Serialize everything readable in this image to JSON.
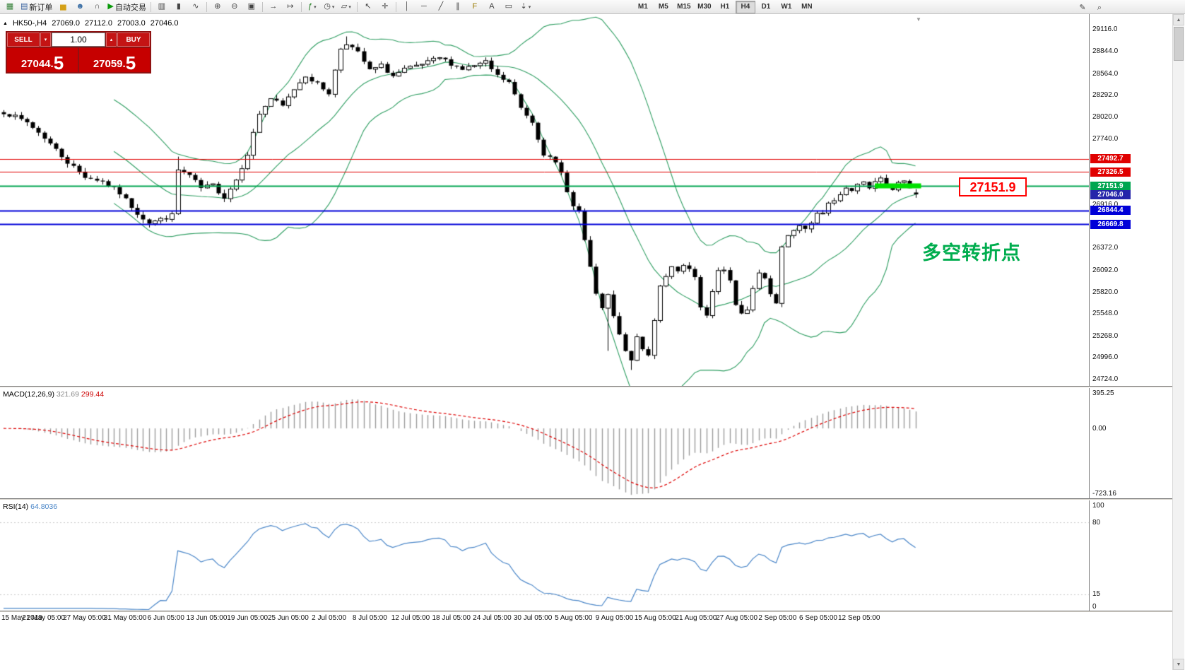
{
  "chart_header": {
    "symbol_period": "HK50-,H4",
    "open": "27069.0",
    "high": "27112.0",
    "low": "27003.0",
    "close": "27046.0"
  },
  "trade_panel": {
    "sell_label": "SELL",
    "buy_label": "BUY",
    "volume": "1.00",
    "sell_price": {
      "main": "27044.",
      "big": "5"
    },
    "buy_price": {
      "main": "27059.",
      "big": "5"
    }
  },
  "toolbar": {
    "groups": [
      {
        "buttons": [
          {
            "name": "new-chart-button",
            "icon": "chart-add-icon"
          },
          {
            "name": "new-order-button",
            "icon": "new-order-icon",
            "label": "新订单"
          },
          {
            "name": "deposit-button",
            "icon": "gold-icon"
          },
          {
            "name": "accounts-button",
            "icon": "profile-icon"
          },
          {
            "name": "support-button",
            "icon": "support-icon"
          },
          {
            "name": "autotrading-button",
            "icon": "autotrade-play-icon",
            "label": "自动交易"
          }
        ]
      },
      {
        "buttons": [
          {
            "name": "bar-chart-button",
            "icon": "bar-chart-icon"
          },
          {
            "name": "candlestick-chart-button",
            "icon": "candlestick-chart-icon"
          },
          {
            "name": "line-chart-button",
            "icon": "line-chart-icon"
          }
        ]
      },
      {
        "buttons": [
          {
            "name": "zoom-in-button",
            "icon": "zoom-in-icon"
          },
          {
            "name": "zoom-out-button",
            "icon": "zoom-out-icon"
          },
          {
            "name": "tile-windows-button",
            "icon": "tile-windows-icon"
          }
        ]
      },
      {
        "buttons": [
          {
            "name": "auto-scroll-button",
            "icon": "auto-scroll-icon"
          },
          {
            "name": "chart-shift-button",
            "icon": "chart-shift-icon"
          }
        ]
      },
      {
        "buttons": [
          {
            "name": "add-indicator-button",
            "icon": "add-indicator-icon",
            "caret": true
          },
          {
            "name": "objects-button",
            "icon": "objects-icon",
            "caret": true
          },
          {
            "name": "templates-button",
            "icon": "templates-icon",
            "caret": true
          }
        ]
      },
      {
        "buttons": [
          {
            "name": "cursor-button",
            "icon": "cursor-icon"
          },
          {
            "name": "crosshair-button",
            "icon": "crosshair-icon"
          }
        ]
      },
      {
        "buttons": [
          {
            "name": "vertical-line-button",
            "icon": "vline-icon"
          },
          {
            "name": "horizontal-line-button",
            "icon": "hline-icon"
          },
          {
            "name": "trendline-button",
            "icon": "trendline-icon"
          },
          {
            "name": "channel-button",
            "icon": "channel-icon"
          },
          {
            "name": "fibonacci-button",
            "icon": "fibonacci-icon"
          },
          {
            "name": "text-button",
            "icon": "text-icon"
          },
          {
            "name": "label-button",
            "icon": "label-icon"
          },
          {
            "name": "arrows-button",
            "icon": "arrows-icon",
            "caret": true
          }
        ]
      }
    ],
    "timeframes": {
      "items": [
        "M1",
        "M5",
        "M15",
        "M30",
        "H1",
        "H4",
        "D1",
        "W1",
        "MN"
      ],
      "active": "H4"
    },
    "right_buttons": [
      {
        "name": "edit-button",
        "icon": "pencil-icon"
      },
      {
        "name": "search-button",
        "icon": "search-icon"
      }
    ]
  },
  "icon_glyphs": {
    "chart-add-icon": [
      "▦",
      "#2e7d32"
    ],
    "new-order-icon": [
      "▤",
      "#355f9e"
    ],
    "gold-icon": [
      "▅",
      "#d4a017"
    ],
    "profile-icon": [
      "☻",
      "#3a6ea5"
    ],
    "support-icon": [
      "∩",
      "#444444"
    ],
    "autotrade-play-icon": [
      "▶",
      "#0a9a0a"
    ],
    "bar-chart-icon": [
      "▥",
      "#444444"
    ],
    "candlestick-chart-icon": [
      "▮",
      "#444444"
    ],
    "line-chart-icon": [
      "∿",
      "#444444"
    ],
    "zoom-in-icon": [
      "⊕",
      "#444444"
    ],
    "zoom-out-icon": [
      "⊖",
      "#444444"
    ],
    "tile-windows-icon": [
      "▣",
      "#444444"
    ],
    "auto-scroll-icon": [
      "→",
      "#444444"
    ],
    "chart-shift-icon": [
      "↦",
      "#444444"
    ],
    "add-indicator-icon": [
      "ƒ",
      "#1a7a1a"
    ],
    "objects-icon": [
      "◷",
      "#444444"
    ],
    "templates-icon": [
      "▱",
      "#444444"
    ],
    "cursor-icon": [
      "↖",
      "#444444"
    ],
    "crosshair-icon": [
      "✛",
      "#444444"
    ],
    "vline-icon": [
      "│",
      "#444444"
    ],
    "hline-icon": [
      "─",
      "#444444"
    ],
    "trendline-icon": [
      "╱",
      "#444444"
    ],
    "channel-icon": [
      "∥",
      "#444444"
    ],
    "fibonacci-icon": [
      "F",
      "#9a7b00"
    ],
    "text-icon": [
      "A",
      "#444444"
    ],
    "label-icon": [
      "▭",
      "#444444"
    ],
    "arrows-icon": [
      "⇣",
      "#444444"
    ],
    "pencil-icon": [
      "✎",
      "#444444"
    ],
    "search-icon": [
      "⌕",
      "#444444"
    ],
    "caret-down-icon": [
      "▾",
      "#ffffff"
    ],
    "caret-up-icon": [
      "▴",
      "#ffffff"
    ],
    "collapse-icon": [
      "▲",
      "#000000"
    ],
    "shift-marker-icon": [
      "▼",
      "#9a9a9a"
    ],
    "scroll-up-icon": [
      "▲",
      "#666666"
    ],
    "scroll-down-icon": [
      "▼",
      "#666666"
    ]
  },
  "price_axis": {
    "labels": [
      "29116.0",
      "28844.0",
      "28564.0",
      "28292.0",
      "28020.0",
      "27740.0",
      "26916.0",
      "26372.0",
      "26092.0",
      "25820.0",
      "25548.0",
      "25268.0",
      "24996.0",
      "24724.0"
    ]
  },
  "time_axis": {
    "labels": [
      "15 May 2019",
      "21 May 05:00",
      "27 May 05:00",
      "31 May 05:00",
      "6 Jun 05:00",
      "13 Jun 05:00",
      "19 Jun 05:00",
      "25 Jun 05:00",
      "2 Jul 05:00",
      "8 Jul 05:00",
      "12 Jul 05:00",
      "18 Jul 05:00",
      "24 Jul 05:00",
      "30 Jul 05:00",
      "5 Aug 05:00",
      "9 Aug 05:00",
      "15 Aug 05:00",
      "21 Aug 05:00",
      "27 Aug 05:00",
      "2 Sep 05:00",
      "6 Sep 05:00",
      "12 Sep 05:00"
    ]
  },
  "macd_panel": {
    "label": "MACD(12,26,9)",
    "value1": "321.69",
    "value2": "299.44",
    "axis": [
      "395.25",
      "0.00",
      "-723.16"
    ]
  },
  "rsi_panel": {
    "label": "RSI(14)",
    "value": "64.8036",
    "axis": [
      "100",
      "80",
      "15",
      "0"
    ],
    "levels": [
      80,
      15
    ]
  },
  "annotations": {
    "price_callout": {
      "text": "27151.9",
      "color": "#ff0000"
    },
    "cjk_note": {
      "text": "多空转折点",
      "color": "#00ad4e"
    }
  },
  "chart_data": {
    "type": "candlestick",
    "symbol": "HK50",
    "period": "H4",
    "ohlc_current": {
      "open": 27069.0,
      "high": 27112.0,
      "low": 27003.0,
      "close": 27046.0
    },
    "num_candles": 158,
    "price_range": [
      24640,
      29310
    ],
    "bollinger": {
      "period": 20,
      "deviation": 2,
      "color": "#2f9e62"
    },
    "price_path_anchors": [
      [
        0,
        28080
      ],
      [
        4,
        27950
      ],
      [
        7,
        27760
      ],
      [
        11,
        27450
      ],
      [
        14,
        27270
      ],
      [
        17,
        27210
      ],
      [
        20,
        27060
      ],
      [
        23,
        26810
      ],
      [
        25,
        26690
      ],
      [
        27,
        26730
      ],
      [
        29,
        26780
      ],
      [
        30,
        27350
      ],
      [
        32,
        27280
      ],
      [
        34,
        27120
      ],
      [
        36,
        27160
      ],
      [
        38,
        27010
      ],
      [
        40,
        27230
      ],
      [
        42,
        27560
      ],
      [
        44,
        28060
      ],
      [
        46,
        28250
      ],
      [
        48,
        28150
      ],
      [
        50,
        28370
      ],
      [
        52,
        28540
      ],
      [
        54,
        28430
      ],
      [
        56,
        28320
      ],
      [
        58,
        28880
      ],
      [
        59,
        28950
      ],
      [
        61,
        28820
      ],
      [
        63,
        28600
      ],
      [
        65,
        28660
      ],
      [
        67,
        28530
      ],
      [
        69,
        28610
      ],
      [
        71,
        28650
      ],
      [
        73,
        28700
      ],
      [
        75,
        28760
      ],
      [
        77,
        28690
      ],
      [
        79,
        28620
      ],
      [
        81,
        28660
      ],
      [
        83,
        28700
      ],
      [
        85,
        28530
      ],
      [
        87,
        28450
      ],
      [
        89,
        28130
      ],
      [
        91,
        27960
      ],
      [
        93,
        27560
      ],
      [
        95,
        27430
      ],
      [
        96,
        27310
      ],
      [
        98,
        26890
      ],
      [
        99,
        26830
      ],
      [
        100,
        26460
      ],
      [
        101,
        26110
      ],
      [
        102,
        25810
      ],
      [
        103,
        25590
      ],
      [
        104,
        25780
      ],
      [
        105,
        25500
      ],
      [
        106,
        25280
      ],
      [
        107,
        25060
      ],
      [
        108,
        24980
      ],
      [
        109,
        25230
      ],
      [
        110,
        25100
      ],
      [
        111,
        25020
      ],
      [
        112,
        25480
      ],
      [
        113,
        25900
      ],
      [
        114,
        26030
      ],
      [
        115,
        26120
      ],
      [
        116,
        26060
      ],
      [
        117,
        26140
      ],
      [
        118,
        26100
      ],
      [
        119,
        25980
      ],
      [
        120,
        25620
      ],
      [
        121,
        25510
      ],
      [
        122,
        25800
      ],
      [
        123,
        26090
      ],
      [
        124,
        26110
      ],
      [
        125,
        25960
      ],
      [
        126,
        25640
      ],
      [
        127,
        25530
      ],
      [
        128,
        25610
      ],
      [
        129,
        25860
      ],
      [
        130,
        26060
      ],
      [
        131,
        25990
      ],
      [
        132,
        25810
      ],
      [
        133,
        25690
      ],
      [
        134,
        26390
      ],
      [
        135,
        26530
      ],
      [
        136,
        26610
      ],
      [
        137,
        26680
      ],
      [
        138,
        26630
      ],
      [
        139,
        26710
      ],
      [
        140,
        26830
      ],
      [
        141,
        26790
      ],
      [
        142,
        26910
      ],
      [
        143,
        26990
      ],
      [
        144,
        27060
      ],
      [
        145,
        27130
      ],
      [
        146,
        27090
      ],
      [
        147,
        27160
      ],
      [
        148,
        27210
      ],
      [
        149,
        27130
      ],
      [
        150,
        27190
      ],
      [
        151,
        27240
      ],
      [
        152,
        27150
      ],
      [
        153,
        27100
      ],
      [
        154,
        27180
      ],
      [
        155,
        27220
      ],
      [
        156,
        27120
      ],
      [
        157,
        27046
      ]
    ],
    "wick_extremes": {
      "highs": [
        [
          30,
          27520
        ],
        [
          59,
          29030
        ]
      ],
      "lows": [
        [
          104,
          25080
        ],
        [
          108,
          24840
        ]
      ]
    },
    "horizontal_lines": [
      {
        "value": 27492.7,
        "label": "27492.7",
        "color": "#e00000",
        "width": 1
      },
      {
        "value": 27326.5,
        "label": "27326.5",
        "color": "#e00000",
        "width": 1
      },
      {
        "value": 27151.9,
        "label": "27151.9",
        "color": "#00a550",
        "width": 2,
        "highlight": true
      },
      {
        "value": 26844.4,
        "label": "26844.4",
        "color": "#0000d8",
        "width": 2
      },
      {
        "value": 26669.8,
        "label": "26669.8",
        "color": "#0000d8",
        "width": 2
      }
    ],
    "current_price": {
      "value": 27046.0,
      "label": "27046.0",
      "color": "#2525aa"
    },
    "indicators": [
      {
        "type": "MACD",
        "params": [
          12,
          26,
          9
        ],
        "current": [
          321.69,
          299.44
        ],
        "scale": [
          -723.16,
          395.25
        ]
      },
      {
        "type": "RSI",
        "params": [
          14
        ],
        "current": 64.8036,
        "scale": [
          0,
          100
        ]
      }
    ]
  }
}
